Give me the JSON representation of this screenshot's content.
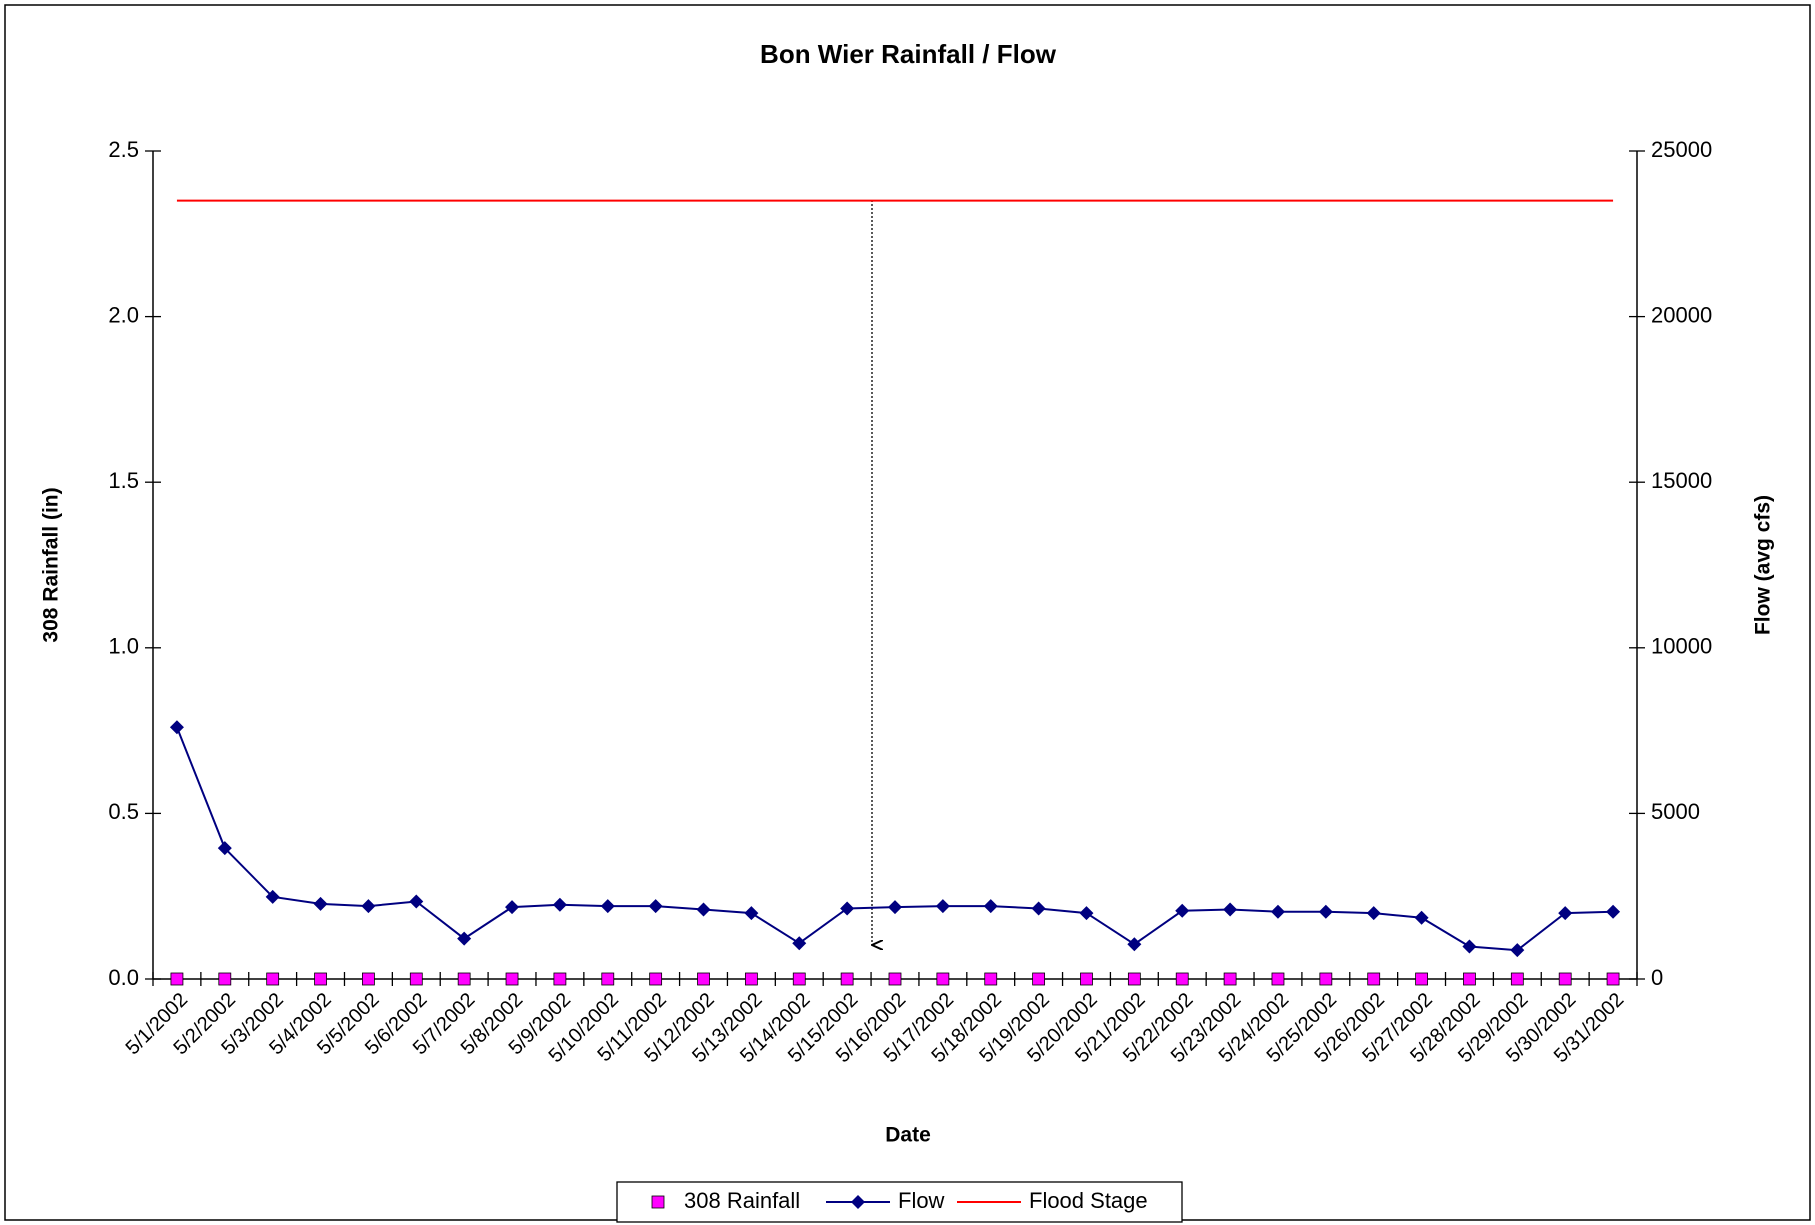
{
  "chart_data": {
    "type": "line",
    "title": "Bon Wier Rainfall / Flow",
    "xlabel": "Date",
    "ylabel": "308 Rainfall (in)",
    "y2label": "Flow (avg cfs)",
    "categories": [
      "5/1/2002",
      "5/2/2002",
      "5/3/2002",
      "5/4/2002",
      "5/5/2002",
      "5/6/2002",
      "5/7/2002",
      "5/8/2002",
      "5/9/2002",
      "5/10/2002",
      "5/11/2002",
      "5/12/2002",
      "5/13/2002",
      "5/14/2002",
      "5/15/2002",
      "5/16/2002",
      "5/17/2002",
      "5/18/2002",
      "5/19/2002",
      "5/20/2002",
      "5/21/2002",
      "5/22/2002",
      "5/23/2002",
      "5/24/2002",
      "5/25/2002",
      "5/26/2002",
      "5/27/2002",
      "5/28/2002",
      "5/29/2002",
      "5/30/2002",
      "5/31/2002"
    ],
    "series": [
      {
        "name": "308 Rainfall",
        "color": "#ff00ff",
        "axis": "y",
        "marker": "square",
        "line": false,
        "values": [
          0,
          0,
          0,
          0,
          0,
          0,
          0,
          0,
          0,
          0,
          0,
          0,
          0,
          0,
          0,
          0,
          0,
          0,
          0,
          0,
          0,
          0,
          0,
          0,
          0,
          0,
          0,
          0,
          0,
          0,
          0
        ]
      },
      {
        "name": "Flow",
        "color": "#000080",
        "axis": "y2",
        "marker": "diamond",
        "line": true,
        "values": [
          7600,
          3950,
          2480,
          2270,
          2200,
          2340,
          1220,
          2170,
          2240,
          2200,
          2200,
          2100,
          1990,
          1080,
          2130,
          2170,
          2200,
          2200,
          2130,
          1990,
          1050,
          2060,
          2100,
          2030,
          2030,
          1990,
          1850,
          980,
          870,
          1990,
          2030
        ]
      },
      {
        "name": "Flood Stage",
        "color": "#ff0000",
        "axis": "y2",
        "marker": "none",
        "line": true,
        "values": [
          23500,
          23500,
          23500,
          23500,
          23500,
          23500,
          23500,
          23500,
          23500,
          23500,
          23500,
          23500,
          23500,
          23500,
          23500,
          23500,
          23500,
          23500,
          23500,
          23500,
          23500,
          23500,
          23500,
          23500,
          23500,
          23500,
          23500,
          23500,
          23500,
          23500,
          23500
        ]
      }
    ],
    "ylim": [
      0,
      2.5
    ],
    "yticks": [
      {
        "value": 0,
        "label": "0.0"
      },
      0.5,
      {
        "value": 1,
        "label": "1.0"
      },
      1.5,
      {
        "value": 2,
        "label": "2.0"
      },
      2.5
    ],
    "y2lim": [
      0,
      25000
    ],
    "y2ticks": [
      0,
      5000,
      10000,
      15000,
      20000,
      25000
    ],
    "legend": "bottom"
  }
}
